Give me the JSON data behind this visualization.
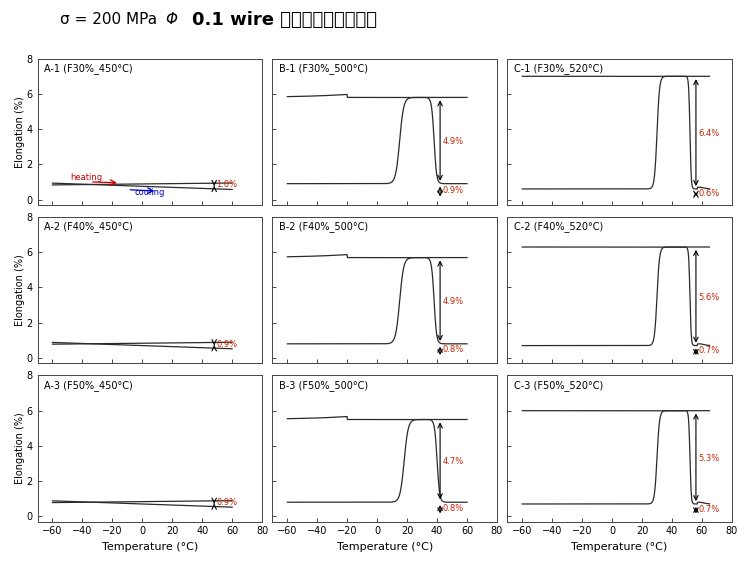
{
  "title_left": "σ = 200 MPa",
  "title_right": "0.1 wire 정하중열사이클시험",
  "title_phi": "Φ",
  "subplot_titles": [
    [
      "A-1 (F30%_450°C)",
      "B-1 (F30%_500°C)",
      "C-1 (F30%_520°C)"
    ],
    [
      "A-2 (F40%_450°C)",
      "B-2 (F40%_500°C)",
      "C-2 (F40%_520°C)"
    ],
    [
      "A-3 (F50%_450°C)",
      "B-3 (F50%_500°C)",
      "C-3 (F50%_520°C)"
    ]
  ],
  "xlabel": "Temperature (°C)",
  "ylabel": "Elongation (%)",
  "xlim": [
    -70,
    80
  ],
  "ylim": [
    -0.3,
    8
  ],
  "xticks": [
    -60,
    -40,
    -20,
    0,
    20,
    40,
    60,
    80
  ],
  "yticks": [
    0,
    2,
    4,
    6,
    8
  ],
  "col_A_annotation": [
    "1.0%",
    "0.9%",
    "0.9%"
  ],
  "col_B_top_annotation": [
    "4.9%",
    "4.9%",
    "4.7%"
  ],
  "col_B_bot_annotation": [
    "0.9%",
    "0.8%",
    "0.8%"
  ],
  "col_C_top_annotation": [
    "6.4%",
    "5.6%",
    "5.3%"
  ],
  "col_C_bot_annotation": [
    "0.6%",
    "0.7%",
    "0.7%"
  ],
  "line_color": "#2a2a2a",
  "annotation_color": "#cc2200",
  "bg_color": "#ffffff",
  "heating_color": "#cc0000",
  "cooling_color": "#0000cc"
}
